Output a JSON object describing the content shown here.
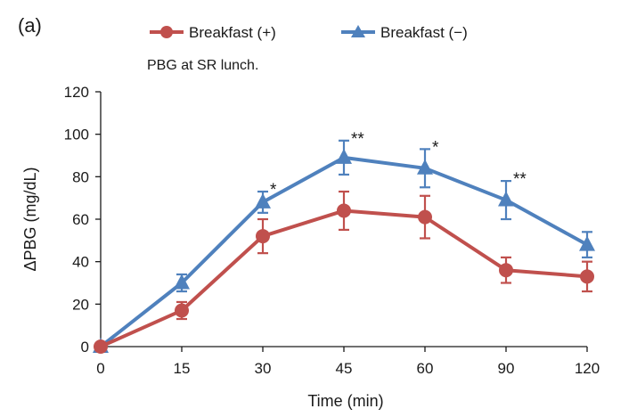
{
  "panel_label": "(a)",
  "note": "PBG at SR lunch.",
  "colors": {
    "series_plus": "#c0504d",
    "series_minus": "#4f81bd",
    "axis": "#1a1a1a"
  },
  "chart_data": {
    "type": "line",
    "xlabel": "Time (min)",
    "ylabel": "ΔPBG (mg/dL)",
    "categories": [
      "0",
      "15",
      "30",
      "45",
      "60",
      "90",
      "120"
    ],
    "ylim": [
      0,
      120
    ],
    "yticks": [
      0,
      20,
      40,
      60,
      80,
      100,
      120
    ],
    "grid": false,
    "legend_position": "top",
    "series": [
      {
        "name": "Breakfast (+)",
        "marker": "circle",
        "color": "#c0504d",
        "values": [
          0,
          17,
          52,
          64,
          61,
          36,
          33
        ],
        "errors": [
          0,
          4,
          8,
          9,
          10,
          6,
          7
        ]
      },
      {
        "name": "Breakfast (−)",
        "marker": "triangle",
        "color": "#4f81bd",
        "values": [
          0,
          30,
          68,
          89,
          84,
          69,
          48
        ],
        "errors": [
          0,
          4,
          5,
          8,
          9,
          9,
          6
        ]
      }
    ],
    "annotations": [
      {
        "category": "30",
        "text": "*"
      },
      {
        "category": "45",
        "text": "**"
      },
      {
        "category": "60",
        "text": "*"
      },
      {
        "category": "90",
        "text": "**"
      }
    ]
  }
}
